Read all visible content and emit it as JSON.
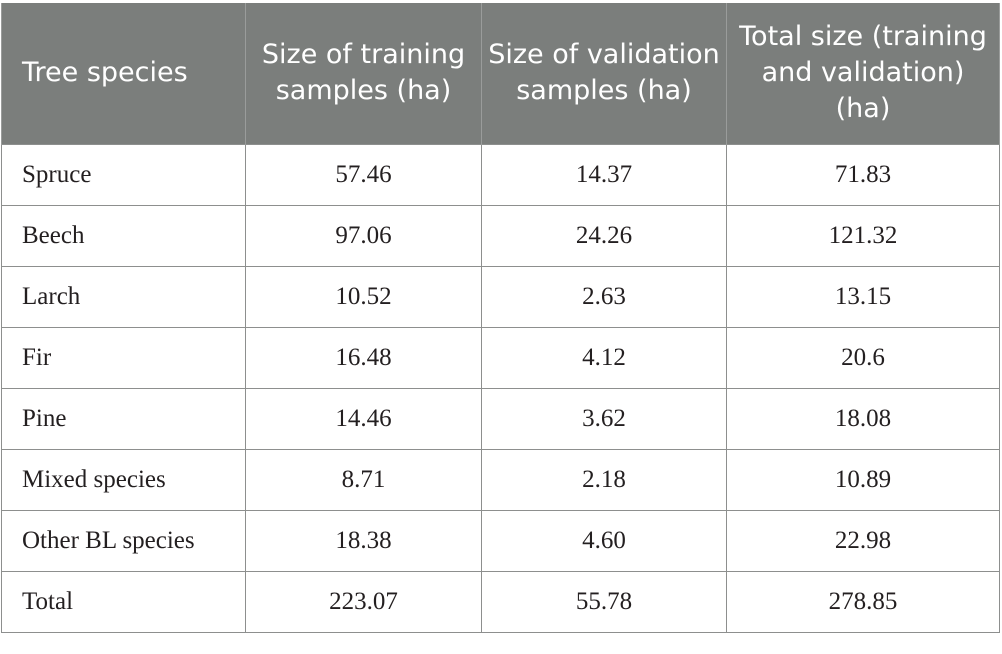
{
  "table": {
    "headers": [
      "Tree species",
      "Size of training samples (ha)",
      "Size of validation samples (ha)",
      "Total size (training and validation) (ha)"
    ],
    "rows": [
      [
        "Spruce",
        "57.46",
        "14.37",
        "71.83"
      ],
      [
        "Beech",
        "97.06",
        "24.26",
        "121.32"
      ],
      [
        "Larch",
        "10.52",
        "2.63",
        "13.15"
      ],
      [
        "Fir",
        "16.48",
        "4.12",
        "20.6"
      ],
      [
        "Pine",
        "14.46",
        "3.62",
        "18.08"
      ],
      [
        "Mixed species",
        "8.71",
        "2.18",
        "10.89"
      ],
      [
        "Other BL species",
        "18.38",
        "4.60",
        "22.98"
      ],
      [
        "Total",
        "223.07",
        "55.78",
        "278.85"
      ]
    ]
  },
  "colors": {
    "header_bg": "#7b7e7c",
    "header_text": "#ffffff",
    "border": "#8d8f8e",
    "body_text": "#231f20"
  }
}
